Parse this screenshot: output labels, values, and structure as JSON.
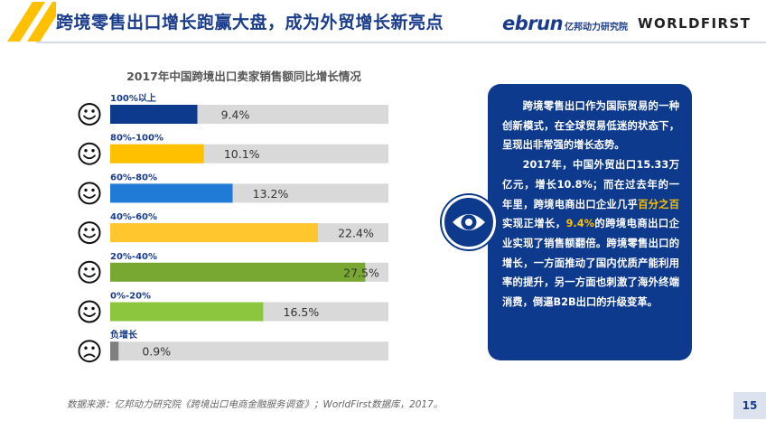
{
  "header": {
    "title": "跨境零售出口增长跑赢大盘，成为外贸增长新亮点",
    "logo_ebrun": "ebrun",
    "logo_ebrun_cn": "亿邦动力研究院",
    "logo_worldfirst": "WORLDFIRST"
  },
  "colors": {
    "navy": "#0d3a8d",
    "accent": "#ffc000",
    "track": "#d9d9d9"
  },
  "chart_data": {
    "type": "bar",
    "orientation": "horizontal",
    "title": "2017年中国跨境出口卖家销售额同比增长情况",
    "xlim": [
      0,
      30
    ],
    "categories": [
      "100%以上",
      "80%-100%",
      "60%-80%",
      "40%-60%",
      "20%-40%",
      "0%-20%",
      "负增长"
    ],
    "values": [
      9.4,
      10.1,
      13.2,
      22.4,
      27.5,
      16.5,
      0.9
    ],
    "value_labels": [
      "9.4%",
      "10.1%",
      "13.2%",
      "22.4%",
      "27.5%",
      "16.5%",
      "0.9%"
    ],
    "bar_colors": [
      "#0d3a8d",
      "#ffc000",
      "#1f7bd6",
      "#ffc62e",
      "#78a832",
      "#8cc63f",
      "#7f7f7f"
    ],
    "faces": [
      "smile",
      "smile",
      "smile",
      "smile",
      "smile",
      "smile",
      "frown"
    ]
  },
  "panel": {
    "p1": "跨境零售出口作为国际贸易的一种创新模式，在全球贸易低迷的状态下，呈现出非常强的增长态势。",
    "p2_a": "2017年，中国外贸出口15.33万亿元，增长10.8%；而在过去年的一年里，跨境电商出口企业几乎",
    "p2_hl1": "百分之百",
    "p2_b": "实现正增长，",
    "p2_hl2": "9.4%",
    "p2_c": "的跨境电商出口企业实现了销售额翻倍。跨境零售出口的增长，一方面推动了国内优质产能利用率的提升，另一方面也刺激了海外终端消费，倒逼B2B出口的升级变革。"
  },
  "footer": {
    "source": "数据来源：亿邦动力研究院《跨境出口电商金融服务调查》；WorldFirst数据库，2017。",
    "page": "15"
  }
}
